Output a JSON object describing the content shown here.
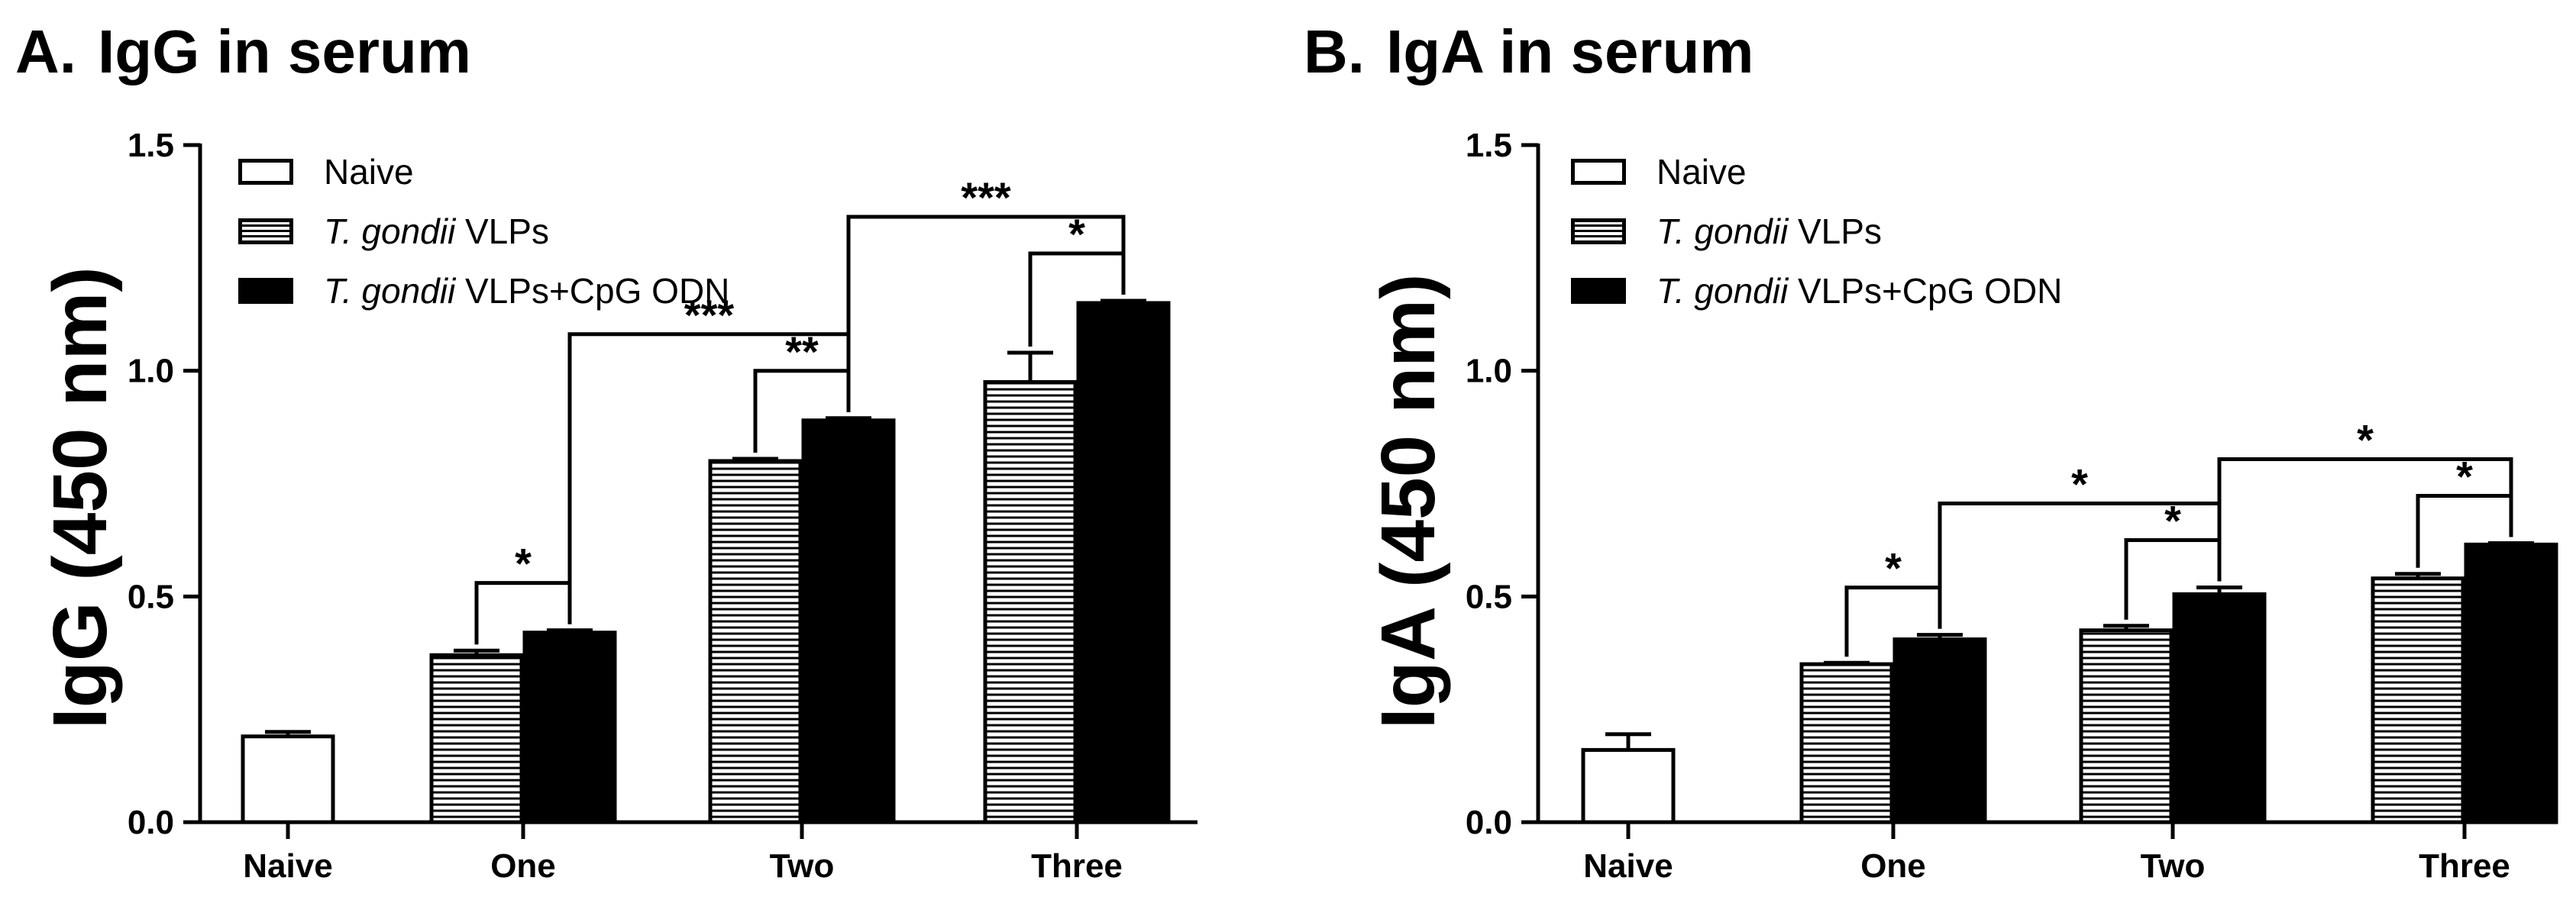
{
  "chart_data": [
    {
      "type": "bar",
      "panel_letter": "A.",
      "title": "IgG in serum",
      "ylabel": "IgG (450 nm)",
      "xlabel": "",
      "ylim": [
        0,
        1.5
      ],
      "yticks": [
        "0.0",
        "0.5",
        "1.0",
        "1.5"
      ],
      "grid": false,
      "legend_position": "top-left",
      "legend": [
        {
          "italic": "",
          "text": "Naive"
        },
        {
          "italic": "T. gondii",
          "text": " VLPs"
        },
        {
          "italic": "T. gondii",
          "text": " VLPs+CpG ODN"
        }
      ],
      "categories": [
        "Naive",
        "One",
        "Two",
        "Three"
      ],
      "series": [
        {
          "name": "Naive",
          "fill": "white",
          "values": [
            0.19,
            null,
            null,
            null
          ],
          "errors": [
            0.01,
            null,
            null,
            null
          ]
        },
        {
          "name": "T. gondii VLPs",
          "fill": "hatch",
          "values": [
            null,
            0.37,
            0.8,
            0.975
          ],
          "errors": [
            null,
            0.01,
            0.005,
            0.065
          ]
        },
        {
          "name": "T. gondii VLPs+CpG ODN",
          "fill": "black",
          "values": [
            null,
            0.42,
            0.89,
            1.15
          ],
          "errors": [
            null,
            0.005,
            0.005,
            0.005
          ]
        }
      ],
      "significance": [
        {
          "from": [
            1,
            1
          ],
          "to": [
            1,
            2
          ],
          "label": "*"
        },
        {
          "from": [
            2,
            1
          ],
          "to": [
            2,
            2
          ],
          "label": "**"
        },
        {
          "from": [
            3,
            1
          ],
          "to": [
            3,
            2
          ],
          "label": "*"
        },
        {
          "from": [
            1,
            2
          ],
          "to": [
            2,
            2
          ],
          "label": "***"
        },
        {
          "from": [
            2,
            2
          ],
          "to": [
            3,
            2
          ],
          "label": "***"
        }
      ]
    },
    {
      "type": "bar",
      "panel_letter": "B.",
      "title": "IgA in serum",
      "ylabel": "IgA (450 nm)",
      "xlabel": "",
      "ylim": [
        0,
        1.5
      ],
      "yticks": [
        "0.0",
        "0.5",
        "1.0",
        "1.5"
      ],
      "grid": false,
      "legend_position": "top-left",
      "legend": [
        {
          "italic": "",
          "text": "Naive"
        },
        {
          "italic": "T. gondii",
          "text": " VLPs"
        },
        {
          "italic": "T. gondii",
          "text": " VLPs+CpG ODN"
        }
      ],
      "categories": [
        "Naive",
        "One",
        "Two",
        "Three"
      ],
      "series": [
        {
          "name": "Naive",
          "fill": "white",
          "values": [
            0.16,
            null,
            null,
            null
          ],
          "errors": [
            0.035,
            null,
            null,
            null
          ]
        },
        {
          "name": "T. gondii VLPs",
          "fill": "hatch",
          "values": [
            null,
            0.35,
            0.425,
            0.54
          ],
          "errors": [
            null,
            0.003,
            0.01,
            0.01
          ]
        },
        {
          "name": "T. gondii VLPs+CpG ODN",
          "fill": "black",
          "values": [
            null,
            0.405,
            0.505,
            0.615
          ],
          "errors": [
            null,
            0.01,
            0.015,
            0.003
          ]
        }
      ],
      "significance": [
        {
          "from": [
            1,
            1
          ],
          "to": [
            1,
            2
          ],
          "label": "*"
        },
        {
          "from": [
            2,
            1
          ],
          "to": [
            2,
            2
          ],
          "label": "*"
        },
        {
          "from": [
            3,
            1
          ],
          "to": [
            3,
            2
          ],
          "label": "*"
        },
        {
          "from": [
            1,
            2
          ],
          "to": [
            2,
            2
          ],
          "label": "*"
        },
        {
          "from": [
            2,
            2
          ],
          "to": [
            3,
            2
          ],
          "label": "*"
        }
      ]
    }
  ]
}
